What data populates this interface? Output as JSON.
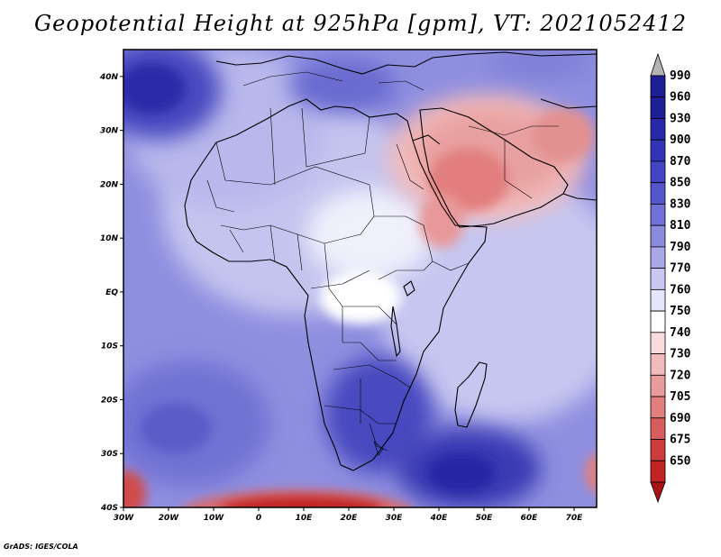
{
  "title": "Geopotential Height at 925hPa [gpm], VT: 2021052412",
  "credit": "GrADS: IGES/COLA",
  "map": {
    "variable": "Geopotential Height",
    "level": "925hPa",
    "units": "gpm",
    "valid_time": "2021052412",
    "lon_range": [
      -30,
      75
    ],
    "lat_range": [
      -40,
      45
    ],
    "lat_ticks": [
      {
        "label": "40N",
        "lat": 40
      },
      {
        "label": "30N",
        "lat": 30
      },
      {
        "label": "20N",
        "lat": 20
      },
      {
        "label": "10N",
        "lat": 10
      },
      {
        "label": "EQ",
        "lat": 0
      },
      {
        "label": "10S",
        "lat": -10
      },
      {
        "label": "20S",
        "lat": -20
      },
      {
        "label": "30S",
        "lat": -30
      },
      {
        "label": "40S",
        "lat": -40
      }
    ],
    "lon_ticks": [
      {
        "label": "30W",
        "lon": -30
      },
      {
        "label": "20W",
        "lon": -20
      },
      {
        "label": "10W",
        "lon": -10
      },
      {
        "label": "0",
        "lon": 0
      },
      {
        "label": "10E",
        "lon": 10
      },
      {
        "label": "20E",
        "lon": 20
      },
      {
        "label": "30E",
        "lon": 30
      },
      {
        "label": "40E",
        "lon": 40
      },
      {
        "label": "50E",
        "lon": 50
      },
      {
        "label": "60E",
        "lon": 60
      },
      {
        "label": "70E",
        "lon": 70
      }
    ]
  },
  "colorbar": {
    "levels": [
      {
        "label": "990",
        "color": "#b4b4b4"
      },
      {
        "label": "960",
        "color": "#1e1e96"
      },
      {
        "label": "930",
        "color": "#2828a8"
      },
      {
        "label": "900",
        "color": "#3434b8"
      },
      {
        "label": "870",
        "color": "#4444c4"
      },
      {
        "label": "850",
        "color": "#5656cc"
      },
      {
        "label": "830",
        "color": "#7070d6"
      },
      {
        "label": "810",
        "color": "#8a8ade"
      },
      {
        "label": "790",
        "color": "#a8a8e8"
      },
      {
        "label": "770",
        "color": "#c8c8f2"
      },
      {
        "label": "760",
        "color": "#e6e6fa"
      },
      {
        "label": "750",
        "color": "#ffffff"
      },
      {
        "label": "740",
        "color": "#fadcdc"
      },
      {
        "label": "730",
        "color": "#f2bcbc"
      },
      {
        "label": "720",
        "color": "#ea9c9c"
      },
      {
        "label": "705",
        "color": "#e27e7e"
      },
      {
        "label": "690",
        "color": "#d85e5e"
      },
      {
        "label": "675",
        "color": "#cc3e3e"
      },
      {
        "label": "650",
        "color": "#c02424"
      }
    ],
    "bottom_color": "#a81414"
  },
  "colors": {
    "ocean_base": "#8c8ce0",
    "land_base": "#c8c8f2",
    "low_red": "#e27e7e",
    "high_blue": "#3434b8"
  }
}
